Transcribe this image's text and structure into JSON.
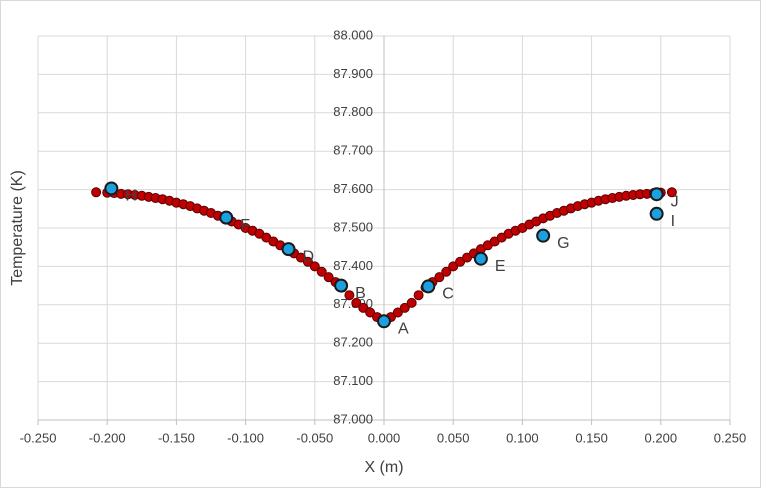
{
  "chart_data": {
    "type": "scatter",
    "xlabel": "X (m)",
    "ylabel": "Temperature (K)",
    "xlim": [
      -0.25,
      0.25
    ],
    "xticks": [
      {
        "value": -0.25,
        "label": "-0.250"
      },
      {
        "value": -0.2,
        "label": "-0.200"
      },
      {
        "value": -0.15,
        "label": "-0.150"
      },
      {
        "value": -0.1,
        "label": "-0.100"
      },
      {
        "value": -0.05,
        "label": "-0.050"
      },
      {
        "value": 0,
        "label": "0.000"
      },
      {
        "value": 0.05,
        "label": "0.050"
      },
      {
        "value": 0.1,
        "label": "0.100"
      },
      {
        "value": 0.15,
        "label": "0.150"
      },
      {
        "value": 0.2,
        "label": "0.200"
      },
      {
        "value": 0.25,
        "label": "0.250"
      }
    ],
    "ylim": [
      87,
      88
    ],
    "yticks": [
      {
        "value": 87,
        "label": "87.000"
      },
      {
        "value": 87.1,
        "label": "87.100"
      },
      {
        "value": 87.2,
        "label": "87.200"
      },
      {
        "value": 87.3,
        "label": "87.300"
      },
      {
        "value": 87.4,
        "label": "87.400"
      },
      {
        "value": 87.5,
        "label": "87.500"
      },
      {
        "value": 87.6,
        "label": "87.600"
      },
      {
        "value": 87.7,
        "label": "87.700"
      },
      {
        "value": 87.8,
        "label": "87.800"
      },
      {
        "value": 87.9,
        "label": "87.900"
      },
      {
        "value": 88,
        "label": "88.000"
      }
    ],
    "grid": true,
    "series": [
      {
        "color": "#c00000",
        "x": [
          -0.208,
          -0.2,
          -0.195,
          -0.19,
          -0.185,
          -0.18,
          -0.175,
          -0.17,
          -0.165,
          -0.16,
          -0.155,
          -0.15,
          -0.145,
          -0.14,
          -0.135,
          -0.13,
          -0.125,
          -0.12,
          -0.115,
          -0.11,
          -0.105,
          -0.1,
          -0.095,
          -0.09,
          -0.085,
          -0.08,
          -0.075,
          -0.07,
          -0.065,
          -0.06,
          -0.055,
          -0.05,
          -0.045,
          -0.04,
          -0.035,
          -0.03,
          -0.025,
          -0.02,
          -0.015,
          -0.01,
          -0.005,
          0,
          0.005,
          0.01,
          0.015,
          0.02,
          0.025,
          0.03,
          0.035,
          0.04,
          0.045,
          0.05,
          0.055,
          0.06,
          0.065,
          0.07,
          0.075,
          0.08,
          0.085,
          0.09,
          0.095,
          0.1,
          0.105,
          0.11,
          0.115,
          0.12,
          0.125,
          0.13,
          0.135,
          0.14,
          0.145,
          0.15,
          0.155,
          0.16,
          0.165,
          0.17,
          0.175,
          0.18,
          0.185,
          0.19,
          0.195,
          0.2,
          0.208
        ],
        "values": [
          87.593,
          87.592,
          87.591,
          87.589,
          87.588,
          87.586,
          87.584,
          87.581,
          87.578,
          87.575,
          87.571,
          87.566,
          87.562,
          87.557,
          87.551,
          87.545,
          87.539,
          87.532,
          87.525,
          87.517,
          87.509,
          87.5,
          87.493,
          87.485,
          87.475,
          87.465,
          87.455,
          87.445,
          87.434,
          87.423,
          87.412,
          87.4,
          87.386,
          87.372,
          87.359,
          87.345,
          87.325,
          87.305,
          87.292,
          87.28,
          87.268,
          87.258,
          87.268,
          87.28,
          87.292,
          87.305,
          87.325,
          87.345,
          87.359,
          87.372,
          87.386,
          87.4,
          87.412,
          87.423,
          87.434,
          87.445,
          87.455,
          87.465,
          87.475,
          87.485,
          87.493,
          87.5,
          87.509,
          87.517,
          87.525,
          87.532,
          87.539,
          87.545,
          87.551,
          87.557,
          87.562,
          87.566,
          87.571,
          87.575,
          87.578,
          87.581,
          87.584,
          87.586,
          87.588,
          87.589,
          87.591,
          87.592,
          87.593
        ]
      },
      {
        "color": "#1ba1e2",
        "x": [
          -0.197,
          -0.114,
          -0.069,
          -0.031,
          0,
          0.032,
          0.07,
          0.115,
          0.197,
          0.197
        ],
        "values": [
          87.603,
          87.527,
          87.445,
          87.35,
          87.257,
          87.348,
          87.42,
          87.48,
          87.537,
          87.588
        ],
        "labels": [
          "H",
          "F",
          "D",
          "B",
          "A",
          "C",
          "E",
          "G",
          "I",
          "J"
        ]
      }
    ]
  }
}
